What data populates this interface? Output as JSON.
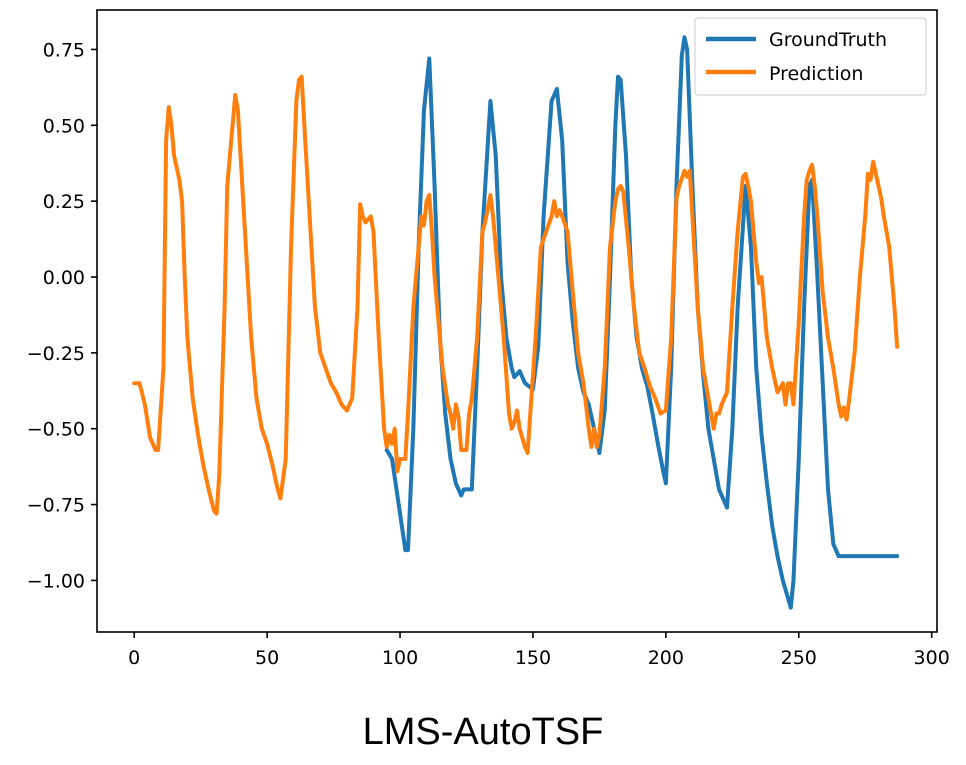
{
  "chart_data": {
    "type": "line",
    "title": "LMS-AutoTSF",
    "xlabel": "",
    "ylabel": "",
    "xlim": [
      -14,
      302
    ],
    "ylim": [
      -1.17,
      0.88
    ],
    "xticks": [
      0,
      50,
      100,
      150,
      200,
      250,
      300
    ],
    "yticks": [
      0.75,
      0.5,
      0.25,
      0.0,
      -0.25,
      -0.5,
      -0.75,
      -1.0
    ],
    "xtick_labels": [
      "0",
      "50",
      "100",
      "150",
      "200",
      "250",
      "300"
    ],
    "ytick_labels": [
      "0.75",
      "0.50",
      "0.25",
      "0.00",
      "−0.25",
      "−0.50",
      "−0.75",
      "−1.00"
    ],
    "grid": false,
    "legend_position": "top-right",
    "series": [
      {
        "name": "GroundTruth",
        "color": "#1f77b4",
        "points": [
          [
            95,
            -0.57
          ],
          [
            97,
            -0.6
          ],
          [
            99,
            -0.72
          ],
          [
            101,
            -0.84
          ],
          [
            102,
            -0.9
          ],
          [
            103,
            -0.9
          ],
          [
            105,
            -0.5
          ],
          [
            107,
            0.1
          ],
          [
            109,
            0.55
          ],
          [
            111,
            0.72
          ],
          [
            113,
            0.3
          ],
          [
            115,
            -0.2
          ],
          [
            117,
            -0.45
          ],
          [
            119,
            -0.6
          ],
          [
            121,
            -0.68
          ],
          [
            123,
            -0.72
          ],
          [
            124,
            -0.7
          ],
          [
            127,
            -0.7
          ],
          [
            129,
            -0.3
          ],
          [
            131,
            0.15
          ],
          [
            134,
            0.58
          ],
          [
            136,
            0.4
          ],
          [
            138,
            0.0
          ],
          [
            140,
            -0.2
          ],
          [
            142,
            -0.3
          ],
          [
            143,
            -0.33
          ],
          [
            145,
            -0.31
          ],
          [
            147,
            -0.35
          ],
          [
            150,
            -0.37
          ],
          [
            152,
            -0.23
          ],
          [
            154,
            0.2
          ],
          [
            157,
            0.58
          ],
          [
            159,
            0.62
          ],
          [
            161,
            0.45
          ],
          [
            163,
            0.05
          ],
          [
            165,
            -0.15
          ],
          [
            167,
            -0.3
          ],
          [
            169,
            -0.38
          ],
          [
            171,
            -0.42
          ],
          [
            173,
            -0.5
          ],
          [
            175,
            -0.58
          ],
          [
            177,
            -0.44
          ],
          [
            179,
            0.0
          ],
          [
            181,
            0.5
          ],
          [
            182,
            0.66
          ],
          [
            183,
            0.65
          ],
          [
            185,
            0.4
          ],
          [
            187,
            0.0
          ],
          [
            189,
            -0.2
          ],
          [
            191,
            -0.3
          ],
          [
            193,
            -0.36
          ],
          [
            195,
            -0.45
          ],
          [
            197,
            -0.55
          ],
          [
            199,
            -0.64
          ],
          [
            200,
            -0.68
          ],
          [
            202,
            -0.3
          ],
          [
            204,
            0.3
          ],
          [
            206,
            0.73
          ],
          [
            207,
            0.79
          ],
          [
            208,
            0.75
          ],
          [
            210,
            0.3
          ],
          [
            212,
            -0.1
          ],
          [
            214,
            -0.32
          ],
          [
            216,
            -0.5
          ],
          [
            218,
            -0.6
          ],
          [
            220,
            -0.7
          ],
          [
            223,
            -0.76
          ],
          [
            225,
            -0.5
          ],
          [
            227,
            -0.1
          ],
          [
            230,
            0.3
          ],
          [
            232,
            0.1
          ],
          [
            234,
            -0.3
          ],
          [
            236,
            -0.52
          ],
          [
            238,
            -0.68
          ],
          [
            240,
            -0.82
          ],
          [
            242,
            -0.92
          ],
          [
            244,
            -1.0
          ],
          [
            246,
            -1.06
          ],
          [
            247,
            -1.09
          ],
          [
            248,
            -1.0
          ],
          [
            250,
            -0.6
          ],
          [
            252,
            -0.1
          ],
          [
            254,
            0.3
          ],
          [
            255,
            0.32
          ],
          [
            257,
            0.0
          ],
          [
            259,
            -0.35
          ],
          [
            261,
            -0.7
          ],
          [
            263,
            -0.88
          ],
          [
            265,
            -0.92
          ],
          [
            270,
            -0.92
          ],
          [
            280,
            -0.92
          ],
          [
            287,
            -0.92
          ]
        ]
      },
      {
        "name": "Prediction",
        "color": "#ff7f0e",
        "points": [
          [
            0,
            -0.35
          ],
          [
            2,
            -0.35
          ],
          [
            4,
            -0.42
          ],
          [
            6,
            -0.53
          ],
          [
            8,
            -0.57
          ],
          [
            9,
            -0.57
          ],
          [
            11,
            -0.3
          ],
          [
            12,
            0.45
          ],
          [
            13,
            0.56
          ],
          [
            14,
            0.5
          ],
          [
            15,
            0.4
          ],
          [
            17,
            0.32
          ],
          [
            18,
            0.25
          ],
          [
            19,
            0.0
          ],
          [
            20,
            -0.2
          ],
          [
            22,
            -0.4
          ],
          [
            24,
            -0.52
          ],
          [
            26,
            -0.62
          ],
          [
            28,
            -0.7
          ],
          [
            30,
            -0.77
          ],
          [
            31,
            -0.78
          ],
          [
            32,
            -0.65
          ],
          [
            34,
            -0.1
          ],
          [
            35,
            0.3
          ],
          [
            37,
            0.5
          ],
          [
            38,
            0.6
          ],
          [
            39,
            0.55
          ],
          [
            40,
            0.4
          ],
          [
            42,
            0.1
          ],
          [
            44,
            -0.2
          ],
          [
            46,
            -0.4
          ],
          [
            48,
            -0.5
          ],
          [
            50,
            -0.55
          ],
          [
            52,
            -0.62
          ],
          [
            54,
            -0.7
          ],
          [
            55,
            -0.73
          ],
          [
            57,
            -0.6
          ],
          [
            59,
            0.1
          ],
          [
            61,
            0.58
          ],
          [
            62,
            0.65
          ],
          [
            63,
            0.66
          ],
          [
            64,
            0.5
          ],
          [
            66,
            0.2
          ],
          [
            68,
            -0.1
          ],
          [
            70,
            -0.25
          ],
          [
            72,
            -0.3
          ],
          [
            74,
            -0.35
          ],
          [
            76,
            -0.38
          ],
          [
            78,
            -0.42
          ],
          [
            80,
            -0.44
          ],
          [
            82,
            -0.4
          ],
          [
            84,
            -0.1
          ],
          [
            85,
            0.24
          ],
          [
            86,
            0.2
          ],
          [
            87,
            0.18
          ],
          [
            89,
            0.2
          ],
          [
            90,
            0.15
          ],
          [
            92,
            -0.2
          ],
          [
            94,
            -0.5
          ],
          [
            95,
            -0.56
          ],
          [
            96,
            -0.52
          ],
          [
            97,
            -0.55
          ],
          [
            98,
            -0.5
          ],
          [
            99,
            -0.64
          ],
          [
            100,
            -0.6
          ],
          [
            102,
            -0.6
          ],
          [
            103,
            -0.45
          ],
          [
            105,
            -0.1
          ],
          [
            107,
            0.1
          ],
          [
            108,
            0.2
          ],
          [
            109,
            0.17
          ],
          [
            110,
            0.25
          ],
          [
            111,
            0.27
          ],
          [
            112,
            0.15
          ],
          [
            113,
            0.0
          ],
          [
            114,
            -0.1
          ],
          [
            116,
            -0.3
          ],
          [
            118,
            -0.42
          ],
          [
            119,
            -0.45
          ],
          [
            120,
            -0.5
          ],
          [
            121,
            -0.42
          ],
          [
            122,
            -0.46
          ],
          [
            123,
            -0.57
          ],
          [
            125,
            -0.57
          ],
          [
            126,
            -0.45
          ],
          [
            127,
            -0.4
          ],
          [
            129,
            -0.2
          ],
          [
            131,
            0.15
          ],
          [
            132,
            0.18
          ],
          [
            134,
            0.27
          ],
          [
            135,
            0.2
          ],
          [
            137,
            0.0
          ],
          [
            139,
            -0.2
          ],
          [
            141,
            -0.45
          ],
          [
            142,
            -0.5
          ],
          [
            143,
            -0.48
          ],
          [
            144,
            -0.44
          ],
          [
            145,
            -0.5
          ],
          [
            147,
            -0.56
          ],
          [
            148,
            -0.58
          ],
          [
            149,
            -0.45
          ],
          [
            151,
            -0.2
          ],
          [
            153,
            0.1
          ],
          [
            155,
            0.15
          ],
          [
            157,
            0.2
          ],
          [
            158,
            0.25
          ],
          [
            159,
            0.2
          ],
          [
            160,
            0.22
          ],
          [
            161,
            0.2
          ],
          [
            163,
            0.15
          ],
          [
            165,
            -0.05
          ],
          [
            167,
            -0.25
          ],
          [
            169,
            -0.35
          ],
          [
            171,
            -0.5
          ],
          [
            172,
            -0.56
          ],
          [
            173,
            -0.5
          ],
          [
            174,
            -0.56
          ],
          [
            175,
            -0.52
          ],
          [
            177,
            -0.3
          ],
          [
            179,
            0.1
          ],
          [
            181,
            0.25
          ],
          [
            182,
            0.29
          ],
          [
            183,
            0.3
          ],
          [
            184,
            0.28
          ],
          [
            186,
            0.1
          ],
          [
            188,
            -0.1
          ],
          [
            190,
            -0.25
          ],
          [
            192,
            -0.3
          ],
          [
            194,
            -0.36
          ],
          [
            196,
            -0.4
          ],
          [
            198,
            -0.45
          ],
          [
            200,
            -0.44
          ],
          [
            202,
            -0.2
          ],
          [
            204,
            0.26
          ],
          [
            205,
            0.3
          ],
          [
            207,
            0.35
          ],
          [
            208,
            0.33
          ],
          [
            209,
            0.35
          ],
          [
            210,
            0.2
          ],
          [
            212,
            -0.1
          ],
          [
            214,
            -0.3
          ],
          [
            216,
            -0.4
          ],
          [
            217,
            -0.45
          ],
          [
            218,
            -0.5
          ],
          [
            219,
            -0.45
          ],
          [
            220,
            -0.45
          ],
          [
            221,
            -0.42
          ],
          [
            223,
            -0.38
          ],
          [
            225,
            -0.1
          ],
          [
            227,
            0.15
          ],
          [
            229,
            0.33
          ],
          [
            230,
            0.34
          ],
          [
            231,
            0.3
          ],
          [
            232,
            0.25
          ],
          [
            234,
            0.05
          ],
          [
            235,
            -0.02
          ],
          [
            236,
            0.0
          ],
          [
            238,
            -0.2
          ],
          [
            240,
            -0.3
          ],
          [
            242,
            -0.38
          ],
          [
            244,
            -0.35
          ],
          [
            245,
            -0.42
          ],
          [
            246,
            -0.35
          ],
          [
            247,
            -0.35
          ],
          [
            248,
            -0.42
          ],
          [
            250,
            -0.15
          ],
          [
            252,
            0.2
          ],
          [
            253,
            0.32
          ],
          [
            254,
            0.35
          ],
          [
            255,
            0.37
          ],
          [
            256,
            0.3
          ],
          [
            257,
            0.2
          ],
          [
            259,
            -0.05
          ],
          [
            261,
            -0.2
          ],
          [
            263,
            -0.3
          ],
          [
            265,
            -0.42
          ],
          [
            266,
            -0.46
          ],
          [
            267,
            -0.43
          ],
          [
            268,
            -0.47
          ],
          [
            269,
            -0.4
          ],
          [
            271,
            -0.25
          ],
          [
            273,
            0.0
          ],
          [
            275,
            0.2
          ],
          [
            276,
            0.34
          ],
          [
            277,
            0.32
          ],
          [
            278,
            0.38
          ],
          [
            279,
            0.34
          ],
          [
            281,
            0.26
          ],
          [
            282,
            0.2
          ],
          [
            284,
            0.1
          ],
          [
            286,
            -0.1
          ],
          [
            287,
            -0.23
          ]
        ]
      }
    ]
  }
}
